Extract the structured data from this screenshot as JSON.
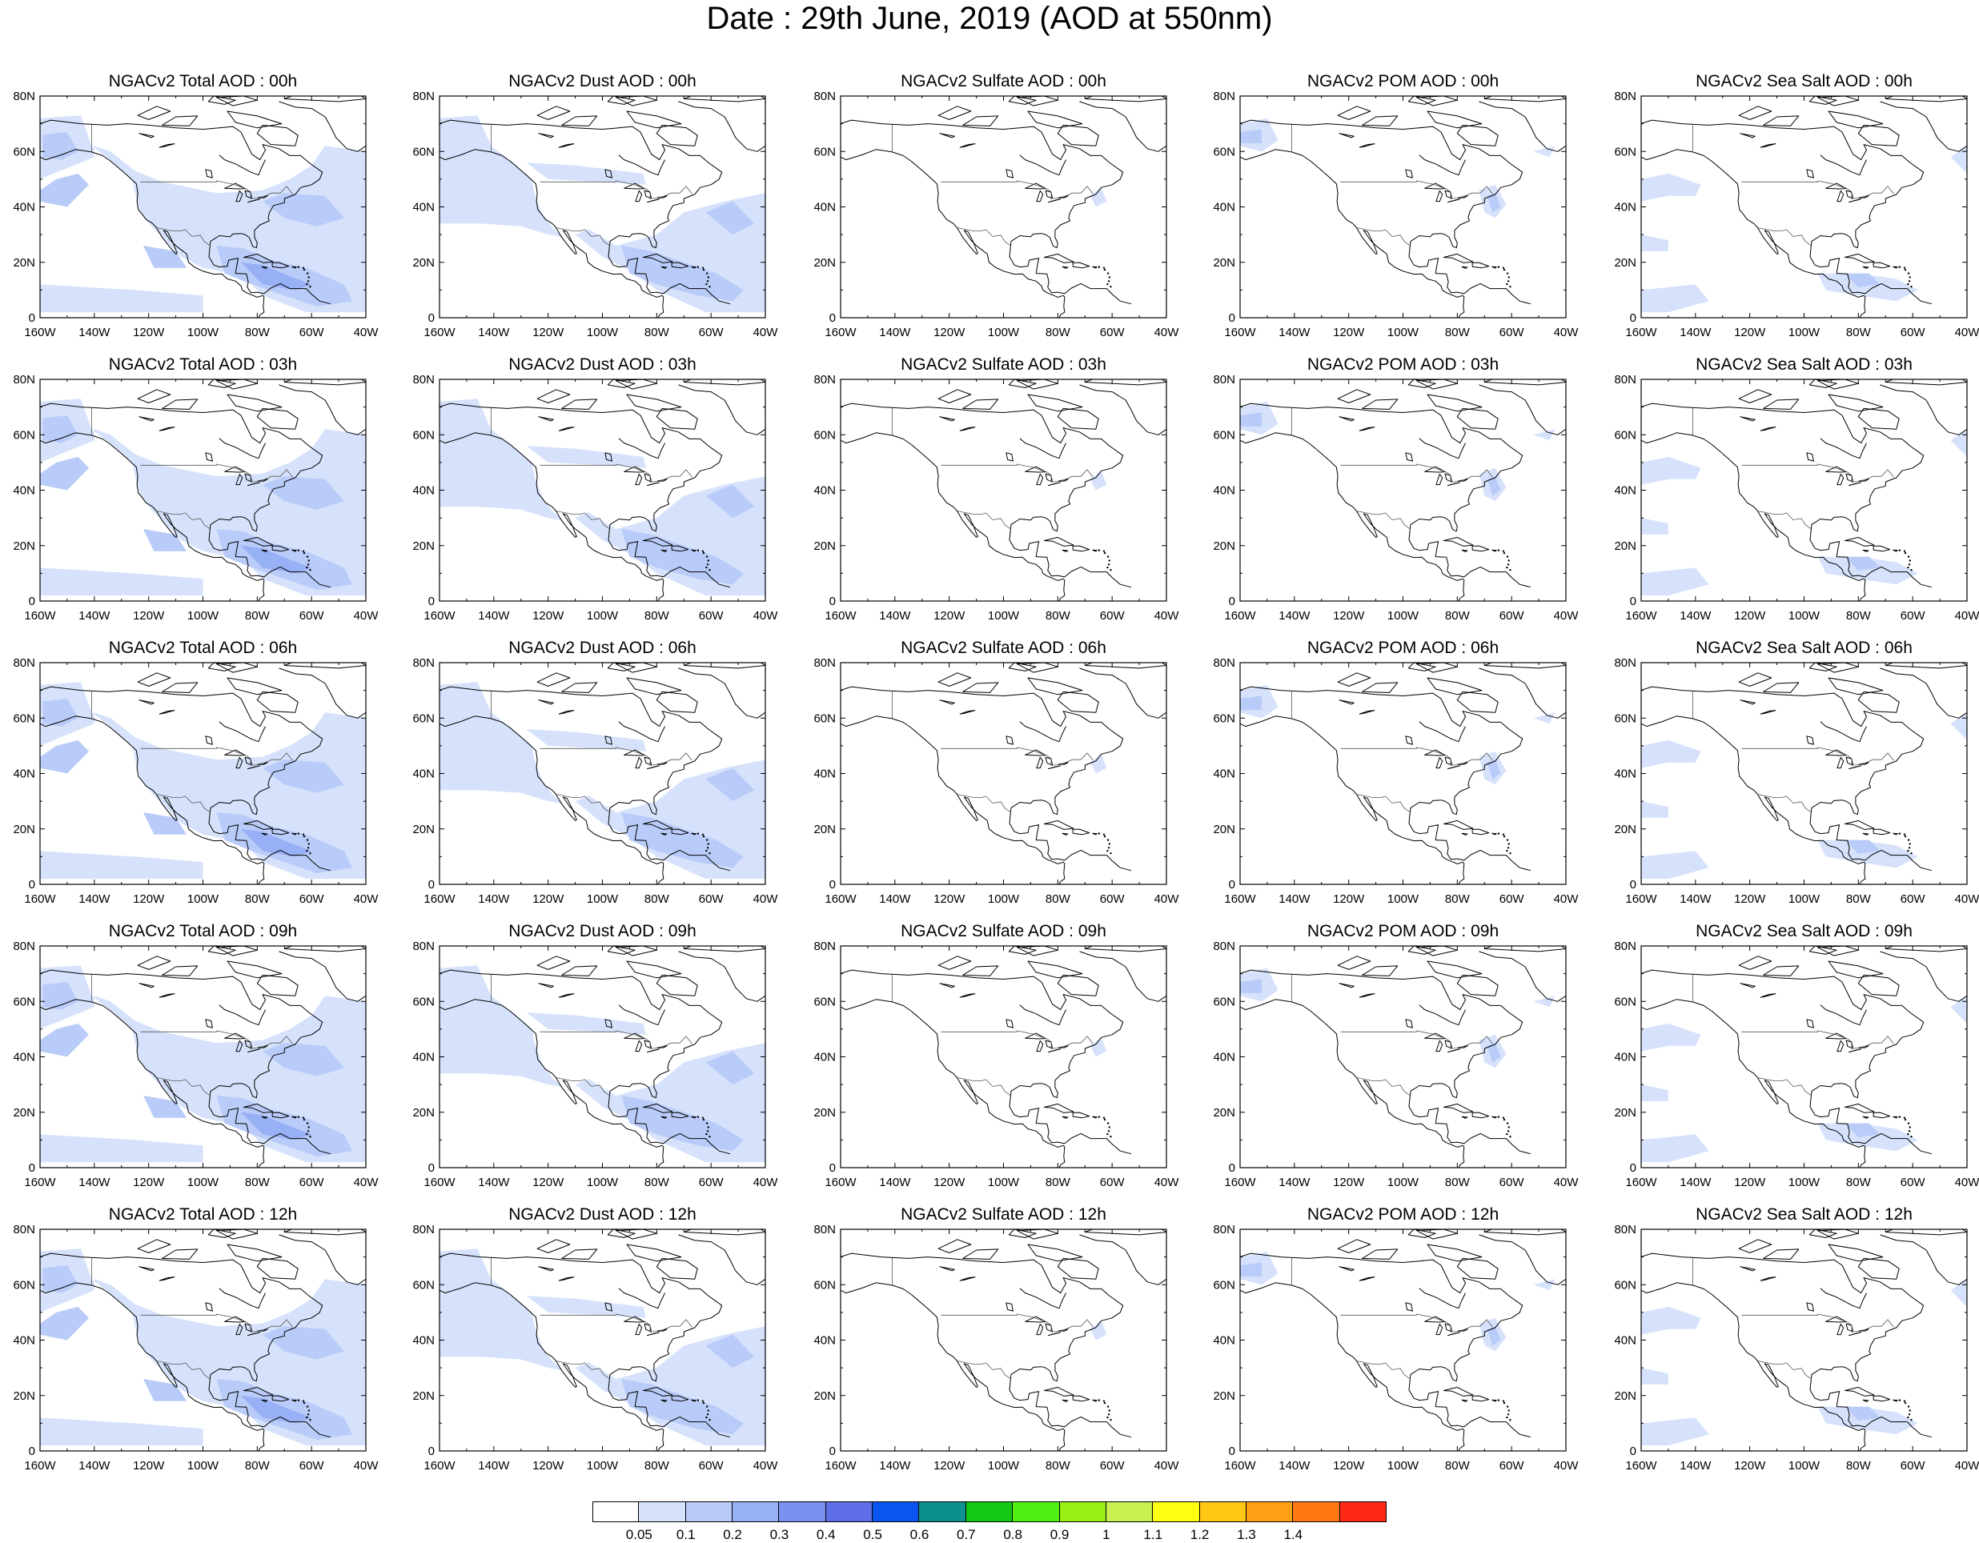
{
  "figure": {
    "title": "Date : 29th June, 2019 (AOD at 550nm)"
  },
  "axes": {
    "lat_labels": [
      "80N",
      "60N",
      "40N",
      "20N",
      "0"
    ],
    "lon_labels": [
      "160W",
      "140W",
      "120W",
      "100W",
      "80W",
      "60W",
      "40W"
    ],
    "lon_range": [
      -160,
      -40
    ],
    "lat_range": [
      0,
      80
    ]
  },
  "panels": [
    {
      "title": "NGACv2 Total AOD : 00h",
      "species": "total"
    },
    {
      "title": "NGACv2 Dust AOD : 00h",
      "species": "dust"
    },
    {
      "title": "NGACv2 Sulfate AOD : 00h",
      "species": "sulfate"
    },
    {
      "title": "NGACv2 POM AOD : 00h",
      "species": "pom"
    },
    {
      "title": "NGACv2 Sea Salt AOD : 00h",
      "species": "seasalt"
    },
    {
      "title": "NGACv2 Total AOD : 03h",
      "species": "total"
    },
    {
      "title": "NGACv2 Dust AOD : 03h",
      "species": "dust"
    },
    {
      "title": "NGACv2 Sulfate AOD : 03h",
      "species": "sulfate"
    },
    {
      "title": "NGACv2 POM AOD : 03h",
      "species": "pom"
    },
    {
      "title": "NGACv2 Sea Salt AOD : 03h",
      "species": "seasalt"
    },
    {
      "title": "NGACv2 Total AOD : 06h",
      "species": "total"
    },
    {
      "title": "NGACv2 Dust AOD : 06h",
      "species": "dust"
    },
    {
      "title": "NGACv2 Sulfate AOD : 06h",
      "species": "sulfate"
    },
    {
      "title": "NGACv2 POM AOD : 06h",
      "species": "pom"
    },
    {
      "title": "NGACv2 Sea Salt AOD : 06h",
      "species": "seasalt"
    },
    {
      "title": "NGACv2 Total AOD : 09h",
      "species": "total"
    },
    {
      "title": "NGACv2 Dust AOD : 09h",
      "species": "dust"
    },
    {
      "title": "NGACv2 Sulfate AOD : 09h",
      "species": "sulfate"
    },
    {
      "title": "NGACv2 POM AOD : 09h",
      "species": "pom"
    },
    {
      "title": "NGACv2 Sea Salt  AOD : 09h",
      "species": "seasalt"
    },
    {
      "title": "NGACv2 Total AOD  : 12h",
      "species": "total"
    },
    {
      "title": "NGACv2 Dust AOD : 12h",
      "species": "dust"
    },
    {
      "title": "NGACv2 Sulfate AOD : 12h",
      "species": "sulfate"
    },
    {
      "title": "NGACv2 POM  AOD : 12h",
      "species": "pom"
    },
    {
      "title": "NGACv2 Sea Salt  AOD : 12h",
      "species": "seasalt"
    }
  ],
  "colorbar": {
    "labels": [
      "0.05",
      "0.1",
      "0.2",
      "0.3",
      "0.4",
      "0.5",
      "0.6",
      "0.7",
      "0.8",
      "0.9",
      "1",
      "1.1",
      "1.2",
      "1.3",
      "1.4"
    ],
    "colors": [
      "#ffffff",
      "#d6e2fb",
      "#b9cbf8",
      "#98b0f5",
      "#7b90f0",
      "#5f6ee8",
      "#0a55f0",
      "#0c8f8f",
      "#14c814",
      "#50f014",
      "#9af014",
      "#c8f050",
      "#ffff14",
      "#ffc814",
      "#ffa014",
      "#ff7814",
      "#ff2814"
    ]
  },
  "colors": {
    "aod_light": "#d6e2fb",
    "aod_medium": "#b9cbf8",
    "aod_strong": "#98b0f5",
    "coastline": "#000000"
  }
}
